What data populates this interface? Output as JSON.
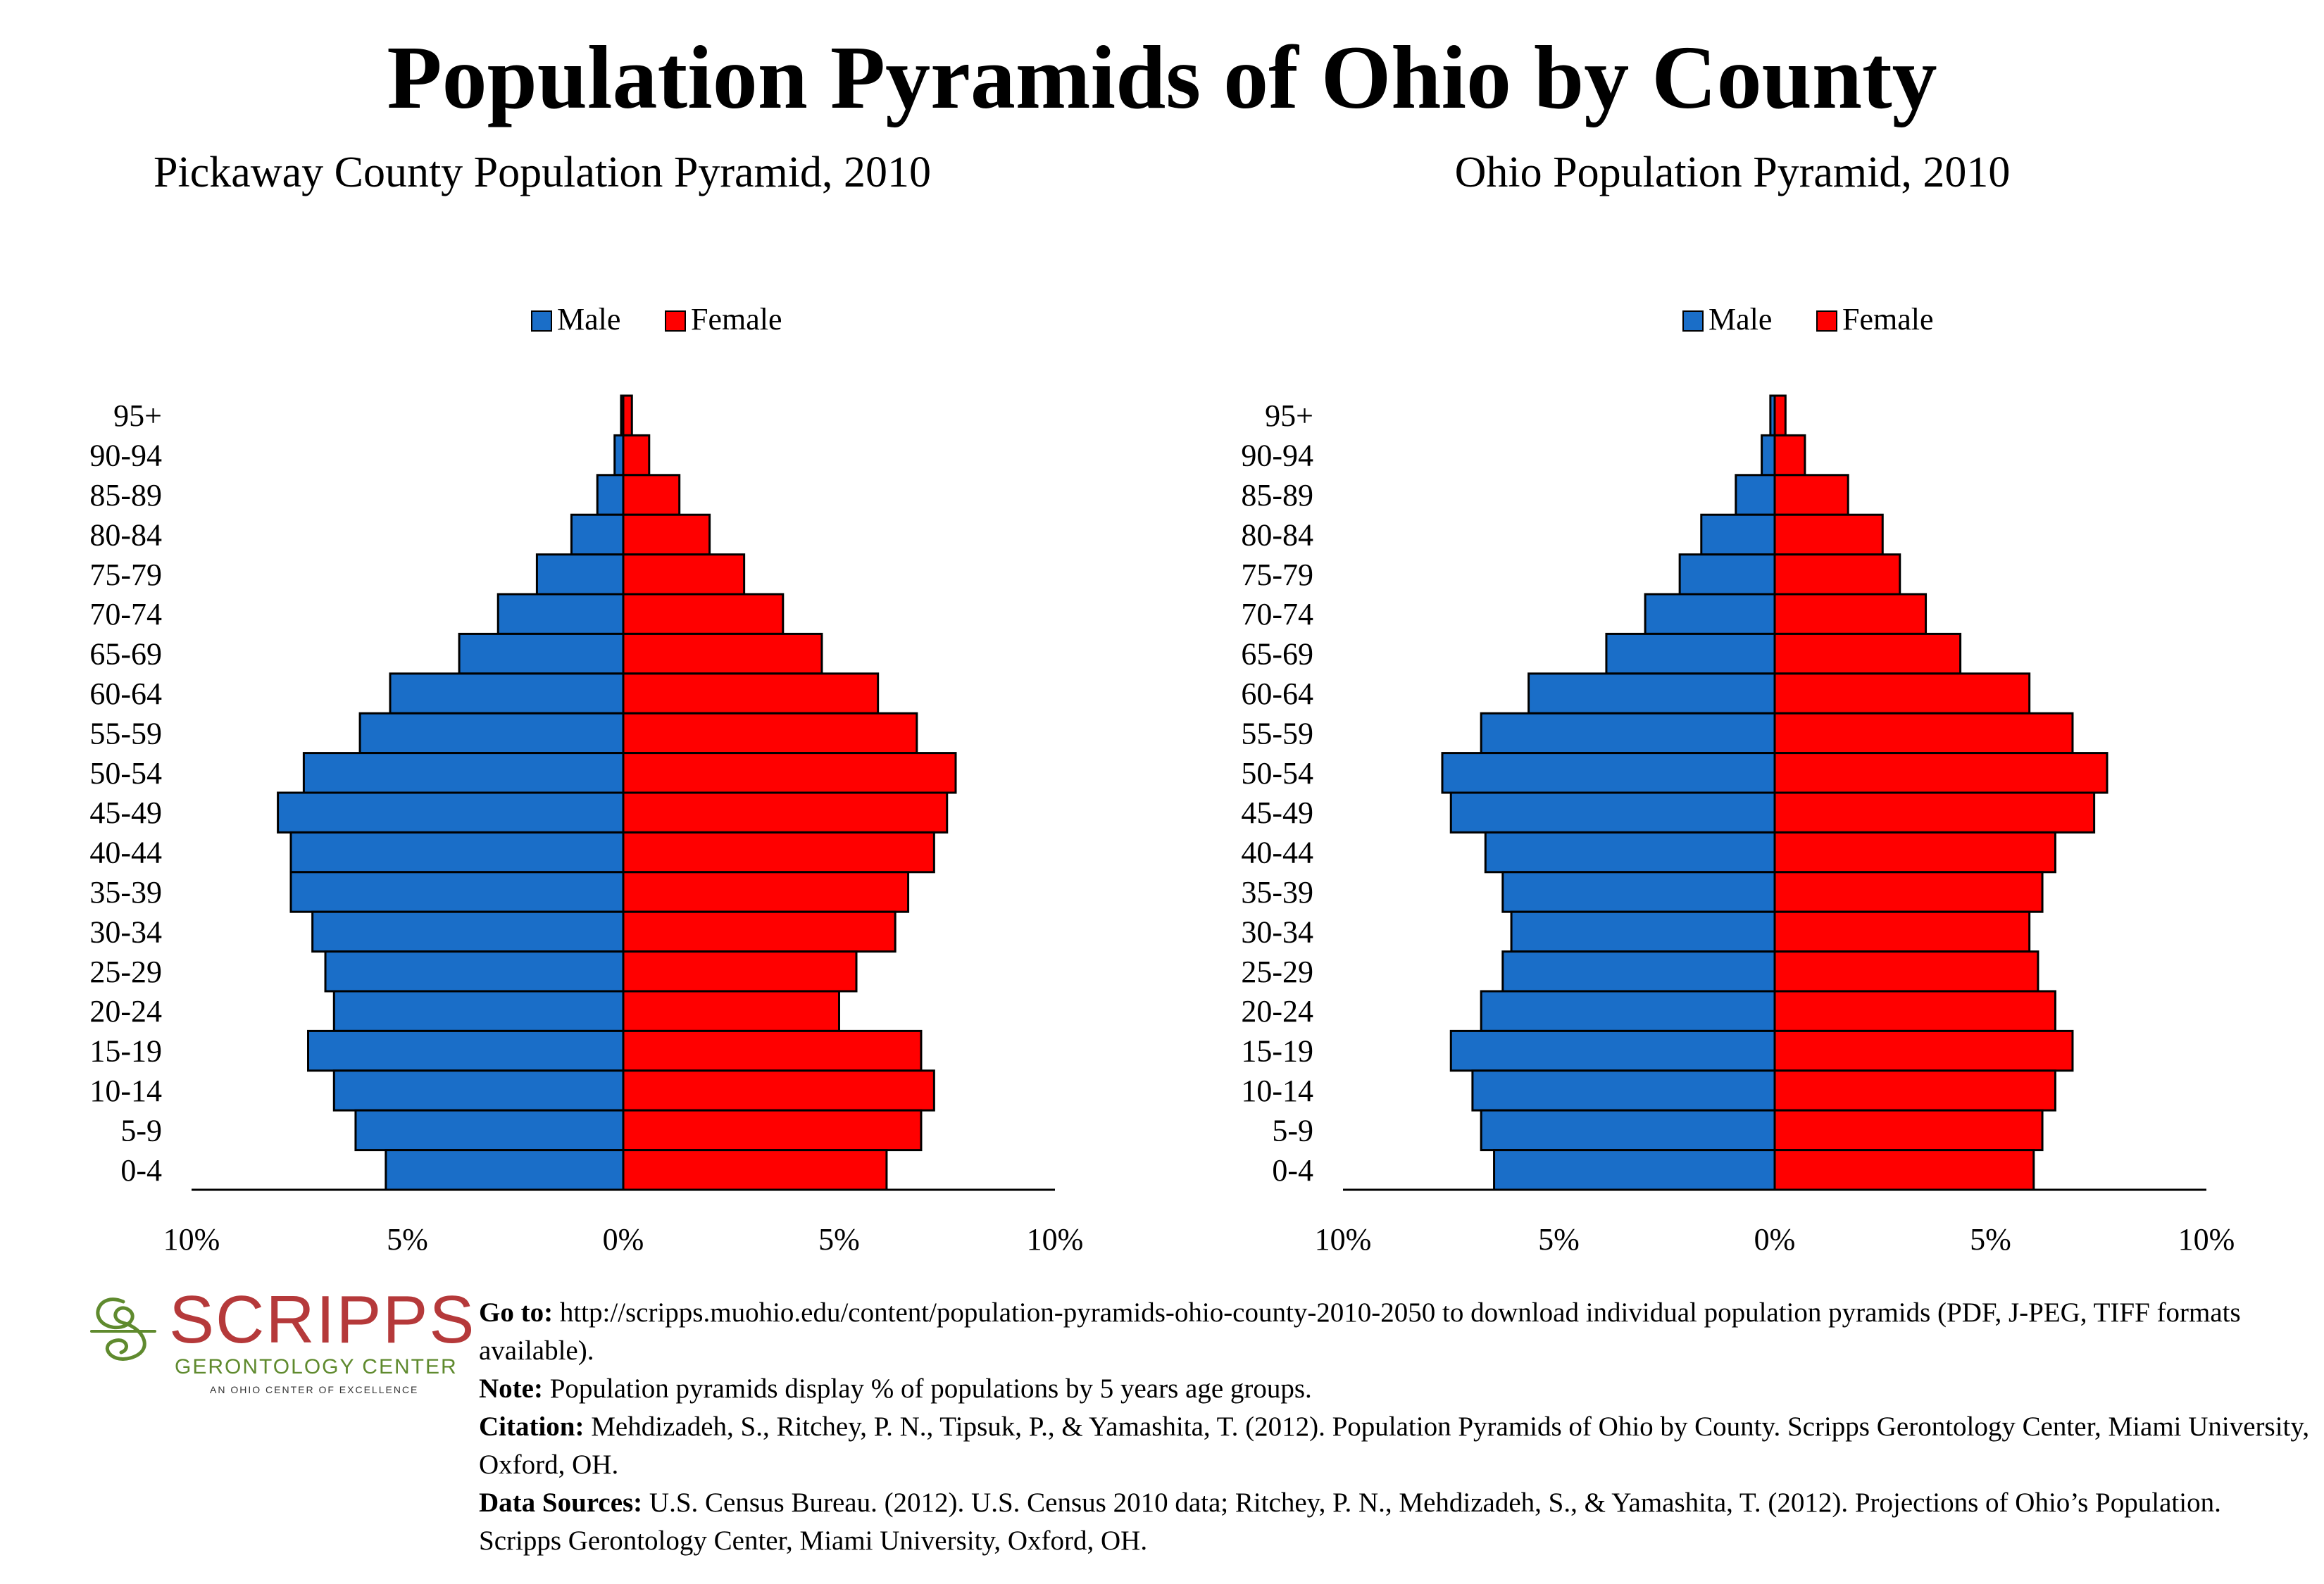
{
  "title": "Population Pyramids of Ohio by County",
  "legend": {
    "male": "Male",
    "female": "Female"
  },
  "colors": {
    "male": "#1a6ec8",
    "female": "#ff0000",
    "stroke": "#000000"
  },
  "x_ticks": [
    "10%",
    "5%",
    "0%",
    "5%",
    "10%"
  ],
  "chart_data": [
    {
      "type": "bar",
      "orientation": "horizontal-pyramid",
      "title": "Pickaway County Population Pyramid, 2010",
      "categories": [
        "95+",
        "90-94",
        "85-89",
        "80-84",
        "75-79",
        "70-74",
        "65-69",
        "60-64",
        "55-59",
        "50-54",
        "45-49",
        "40-44",
        "35-39",
        "30-34",
        "25-29",
        "20-24",
        "15-19",
        "10-14",
        "5-9",
        "0-4"
      ],
      "series": [
        {
          "name": "Male",
          "values": [
            0.05,
            0.2,
            0.6,
            1.2,
            2.0,
            2.9,
            3.8,
            5.4,
            6.1,
            7.4,
            8.0,
            7.7,
            7.7,
            7.2,
            6.9,
            6.7,
            7.3,
            6.7,
            6.2,
            5.5
          ]
        },
        {
          "name": "Female",
          "values": [
            0.2,
            0.6,
            1.3,
            2.0,
            2.8,
            3.7,
            4.6,
            5.9,
            6.8,
            7.7,
            7.5,
            7.2,
            6.6,
            6.3,
            5.4,
            5.0,
            6.9,
            7.2,
            6.9,
            6.1
          ]
        }
      ],
      "xlim": [
        -10,
        10
      ],
      "legend_position": "top-center"
    },
    {
      "type": "bar",
      "orientation": "horizontal-pyramid",
      "title": "Ohio Population Pyramid, 2010",
      "categories": [
        "95+",
        "90-94",
        "85-89",
        "80-84",
        "75-79",
        "70-74",
        "65-69",
        "60-64",
        "55-59",
        "50-54",
        "45-49",
        "40-44",
        "35-39",
        "30-34",
        "25-29",
        "20-24",
        "15-19",
        "10-14",
        "5-9",
        "0-4"
      ],
      "series": [
        {
          "name": "Male",
          "values": [
            0.1,
            0.3,
            0.9,
            1.7,
            2.2,
            3.0,
            3.9,
            5.7,
            6.8,
            7.7,
            7.5,
            6.7,
            6.3,
            6.1,
            6.3,
            6.8,
            7.5,
            7.0,
            6.8,
            6.5
          ]
        },
        {
          "name": "Female",
          "values": [
            0.25,
            0.7,
            1.7,
            2.5,
            2.9,
            3.5,
            4.3,
            5.9,
            6.9,
            7.7,
            7.4,
            6.5,
            6.2,
            5.9,
            6.1,
            6.5,
            6.9,
            6.5,
            6.2,
            6.0
          ]
        }
      ],
      "xlim": [
        -10,
        10
      ],
      "legend_position": "top-center"
    }
  ],
  "logo": {
    "word": "SCRIPPS",
    "line2": "GERONTOLOGY CENTER",
    "line3": "AN OHIO CENTER OF EXCELLENCE"
  },
  "notes": [
    {
      "label": "Go to:",
      "text": " http://scripps.muohio.edu/content/population-pyramids-ohio-county-2010-2050 to download individual population pyramids (PDF, J-PEG, TIFF formats available)."
    },
    {
      "label": "Note:",
      "text": " Population pyramids display % of populations by 5 years age groups."
    },
    {
      "label": "Citation:",
      "text": " Mehdizadeh, S., Ritchey, P. N., Tipsuk, P., & Yamashita, T. (2012). Population Pyramids of Ohio by County. Scripps Gerontology Center, Miami University, Oxford, OH."
    },
    {
      "label": "Data Sources:",
      "text": " U.S. Census Bureau. (2012). U.S. Census 2010 data; Ritchey, P. N., Mehdizadeh, S., & Yamashita, T. (2012). Projections of Ohio’s Population. Scripps Gerontology Center, Miami University, Oxford, OH."
    }
  ]
}
